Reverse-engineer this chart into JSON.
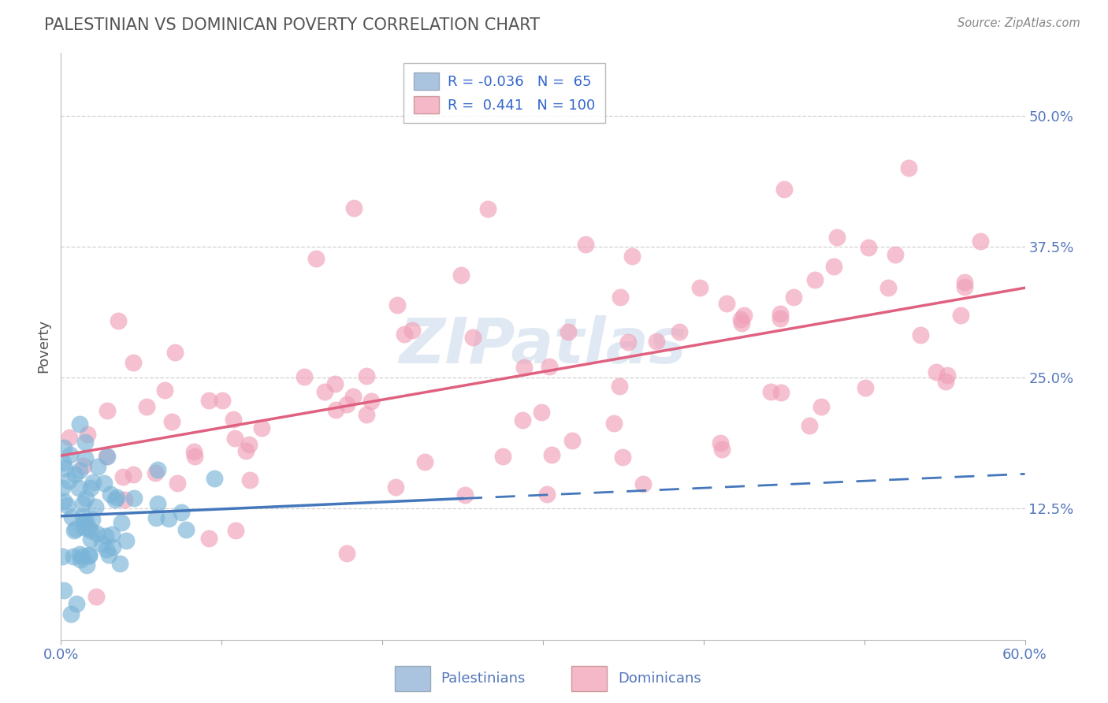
{
  "title": "PALESTINIAN VS DOMINICAN POVERTY CORRELATION CHART",
  "source_text": "Source: ZipAtlas.com",
  "ylabel": "Poverty",
  "xlim": [
    0.0,
    0.6
  ],
  "ylim": [
    0.0,
    0.56
  ],
  "xticks": [
    0.0,
    0.1,
    0.2,
    0.3,
    0.4,
    0.5,
    0.6
  ],
  "xticklabels": [
    "0.0%",
    "",
    "",
    "",
    "",
    "",
    "60.0%"
  ],
  "yticks_right": [
    0.125,
    0.25,
    0.375,
    0.5
  ],
  "yticklabels_right": [
    "12.5%",
    "25.0%",
    "37.5%",
    "50.0%"
  ],
  "grid_color": "#cccccc",
  "background_color": "#ffffff",
  "watermark": "ZIPatlas",
  "legend_blue_label": "R = -0.036   N =  65",
  "legend_pink_label": "R =  0.441   N = 100",
  "legend_blue_color": "#aac4e0",
  "legend_pink_color": "#f4b8c8",
  "pal_color": "#7ab4d8",
  "pal_line_color": "#4477bb",
  "dom_color": "#f0a0b8",
  "dom_line_color": "#e06080",
  "title_color": "#555555",
  "title_fontsize": 15,
  "tick_color": "#5577bb",
  "source_color": "#888888",
  "watermark_color": "#c8d8ea"
}
